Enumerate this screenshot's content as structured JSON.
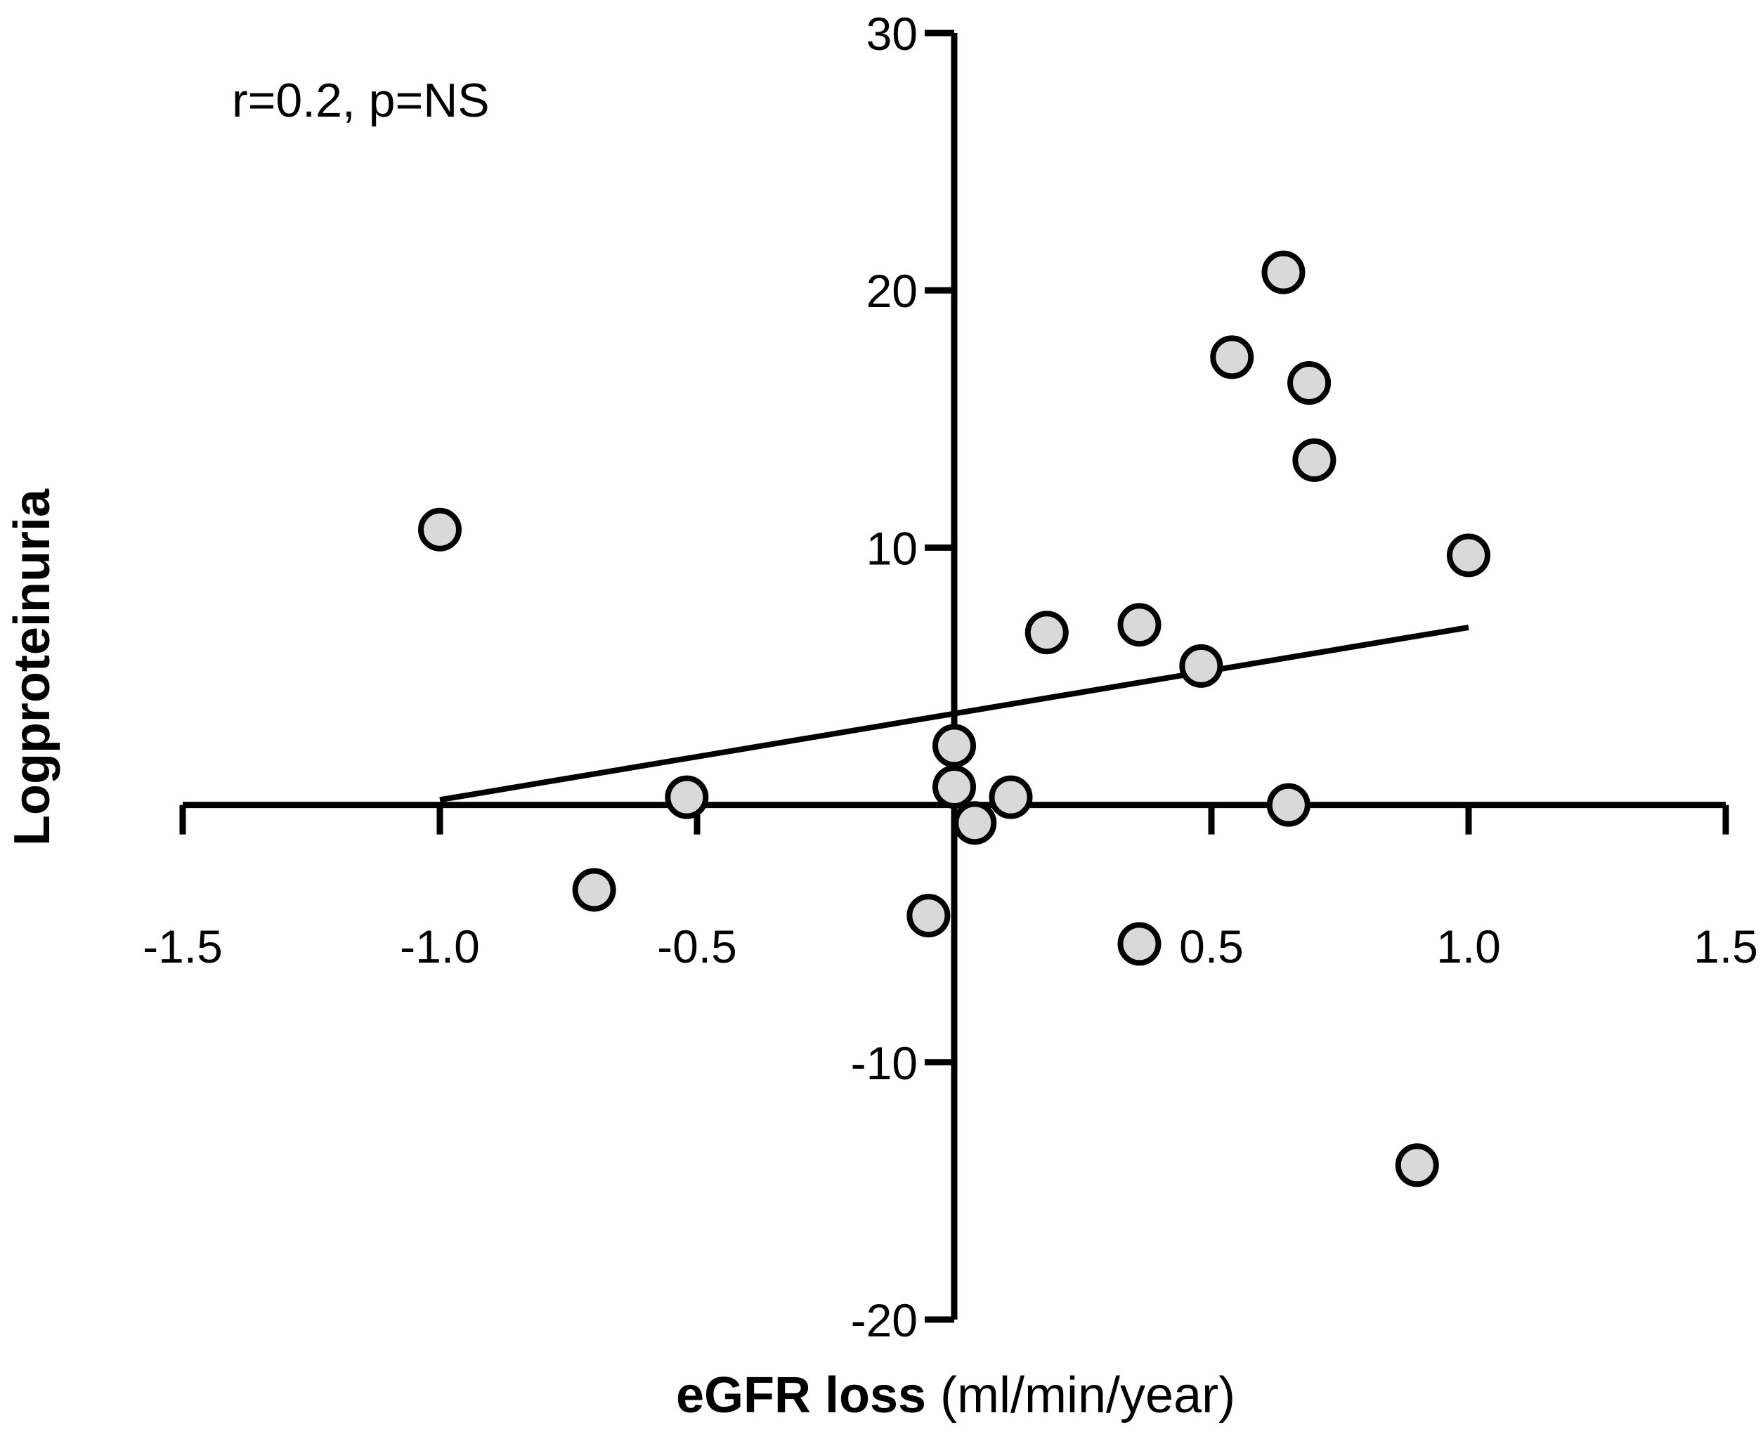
{
  "chart_data": {
    "type": "scatter",
    "annotation": "r=0.2, p=NS",
    "xlabel": {
      "bold": "eGFR loss",
      "normal": " (ml/min/year)"
    },
    "ylabel": "Logproteinuria",
    "xlim": [
      -1.5,
      1.5
    ],
    "ylim": [
      -20,
      30
    ],
    "xticks": [
      -1.5,
      -1.0,
      -0.5,
      0.5,
      1.0,
      1.5
    ],
    "xtick_labels": [
      "-1.5",
      "-1.0",
      "-0.5",
      "0.5",
      "1.0",
      "1.5"
    ],
    "yticks": [
      -20,
      -10,
      10,
      20,
      30
    ],
    "ytick_labels": [
      "-20",
      "-10",
      "10",
      "20",
      "30"
    ],
    "grid": false,
    "marker_fill": "#d9d9d9",
    "marker_edge": "#000000",
    "points": [
      {
        "x": -1.0,
        "y": 10.7
      },
      {
        "x": -0.7,
        "y": -3.3
      },
      {
        "x": -0.52,
        "y": 0.3
      },
      {
        "x": -0.05,
        "y": -4.3
      },
      {
        "x": 0.0,
        "y": 2.3
      },
      {
        "x": 0.0,
        "y": 0.7
      },
      {
        "x": 0.04,
        "y": -0.7
      },
      {
        "x": 0.11,
        "y": 0.3
      },
      {
        "x": 0.18,
        "y": 6.7
      },
      {
        "x": 0.36,
        "y": 7.0
      },
      {
        "x": 0.36,
        "y": -5.4
      },
      {
        "x": 0.48,
        "y": 5.4
      },
      {
        "x": 0.54,
        "y": 17.4
      },
      {
        "x": 0.64,
        "y": 20.7
      },
      {
        "x": 0.65,
        "y": 0.0
      },
      {
        "x": 0.69,
        "y": 16.4
      },
      {
        "x": 0.7,
        "y": 13.4
      },
      {
        "x": 0.9,
        "y": -14.0
      },
      {
        "x": 1.0,
        "y": 9.7
      }
    ],
    "regression": {
      "x": [
        -1.0,
        1.0
      ],
      "y": [
        0.2,
        6.9
      ]
    }
  }
}
